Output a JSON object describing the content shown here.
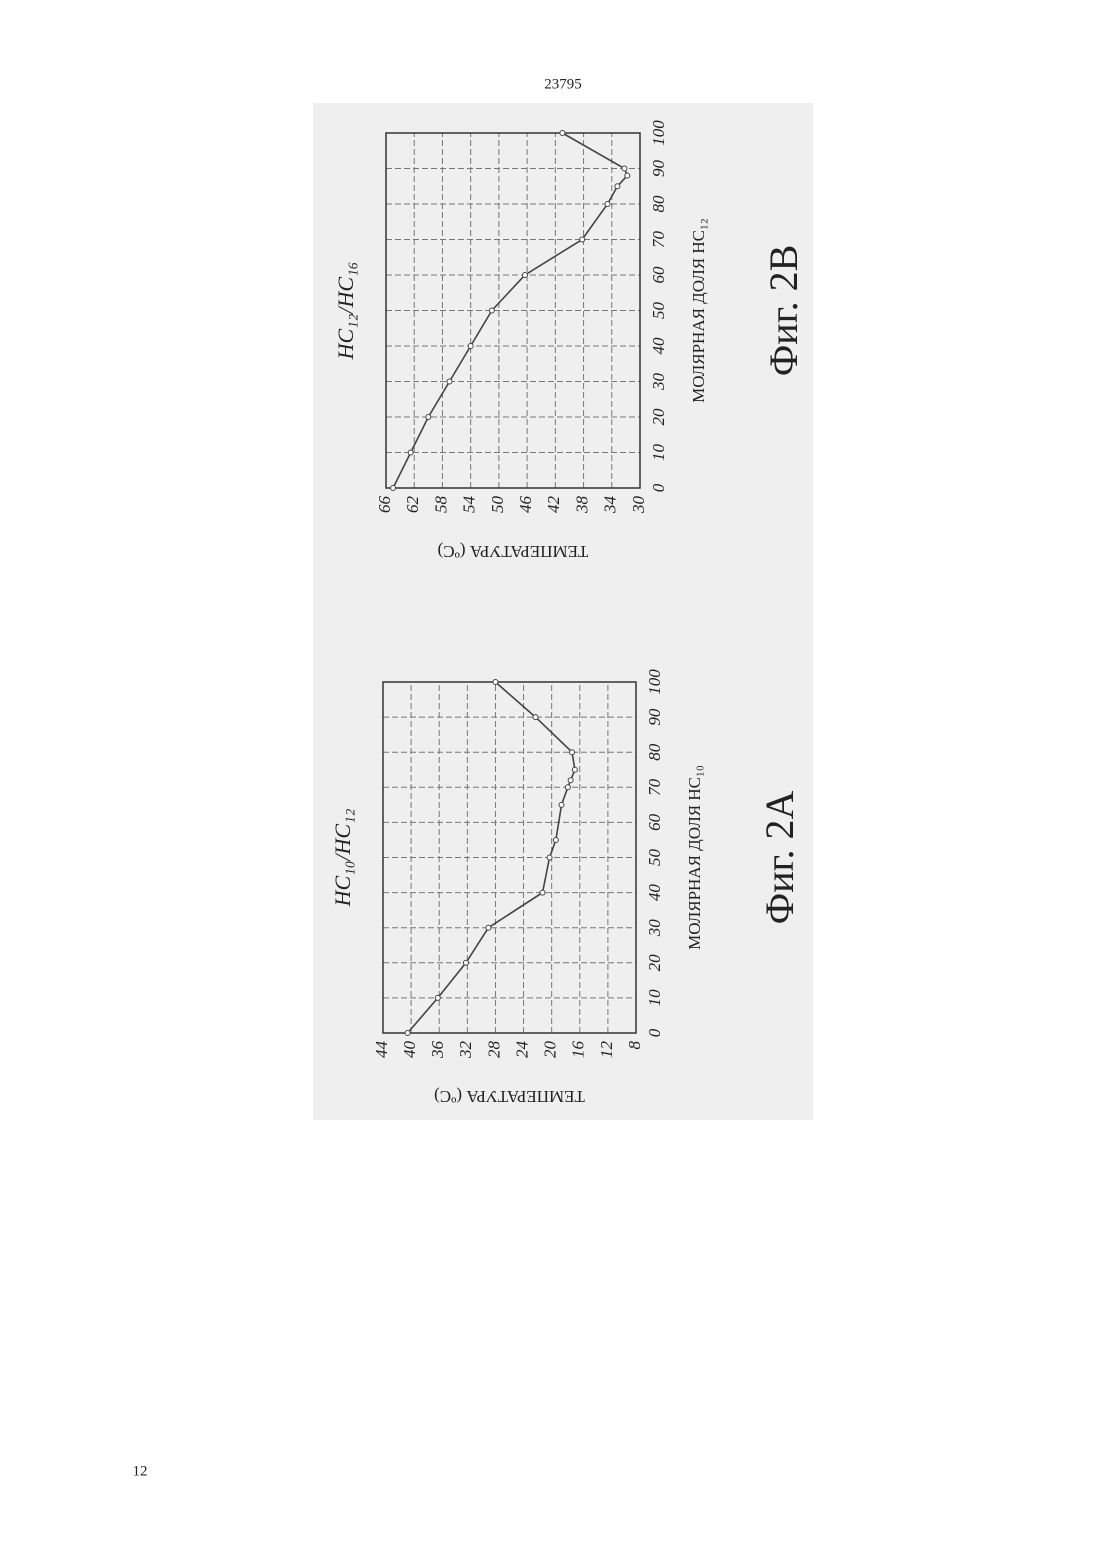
{
  "header": "23795",
  "footer": "12",
  "chart_data": [
    {
      "type": "line",
      "title": "HC₁₀/HC₁₂",
      "x_label": "МОЛЯРНАЯ ДОЛЯ НС₁₀",
      "y_label": "ТЕМПЕРАТУРА (ºC)",
      "caption": "Фиг. 2A",
      "x": [
        0,
        10,
        20,
        30,
        40,
        50,
        55,
        65,
        70,
        72,
        75,
        80,
        90,
        100
      ],
      "values": [
        40.5,
        36.2,
        32.2,
        29,
        21.3,
        20.3,
        19.4,
        18.6,
        17.7,
        17.3,
        16.7,
        17.1,
        22.3,
        28
      ],
      "color": "#444",
      "xlim": [
        0,
        100
      ],
      "ylim": [
        8,
        44
      ],
      "xticks": [
        0,
        10,
        20,
        30,
        40,
        50,
        60,
        70,
        80,
        90,
        100
      ],
      "yticks": [
        44,
        40,
        36,
        32,
        28,
        24,
        20,
        16,
        12,
        8
      ],
      "grid": true
    },
    {
      "type": "line",
      "title": "HC₁₂/HC₁₆",
      "x_label": "МОЛЯРНАЯ ДОЛЯ НС₁₂",
      "y_label": "ТЕМПЕРАТУРА (ºC)",
      "caption": "Фиг. 2B",
      "x": [
        0,
        10,
        20,
        30,
        40,
        50,
        60,
        70,
        80,
        85,
        88,
        90,
        100
      ],
      "values": [
        65,
        62.5,
        60,
        57,
        54,
        51,
        46.3,
        38.2,
        34.6,
        33.2,
        31.8,
        32.2,
        41
      ],
      "color": "#444",
      "xlim": [
        0,
        100
      ],
      "ylim": [
        30,
        66
      ],
      "xticks": [
        0,
        10,
        20,
        30,
        40,
        50,
        60,
        70,
        80,
        90,
        100
      ],
      "yticks": [
        66,
        62,
        58,
        54,
        50,
        46,
        42,
        38,
        34,
        30
      ],
      "grid": true
    }
  ]
}
